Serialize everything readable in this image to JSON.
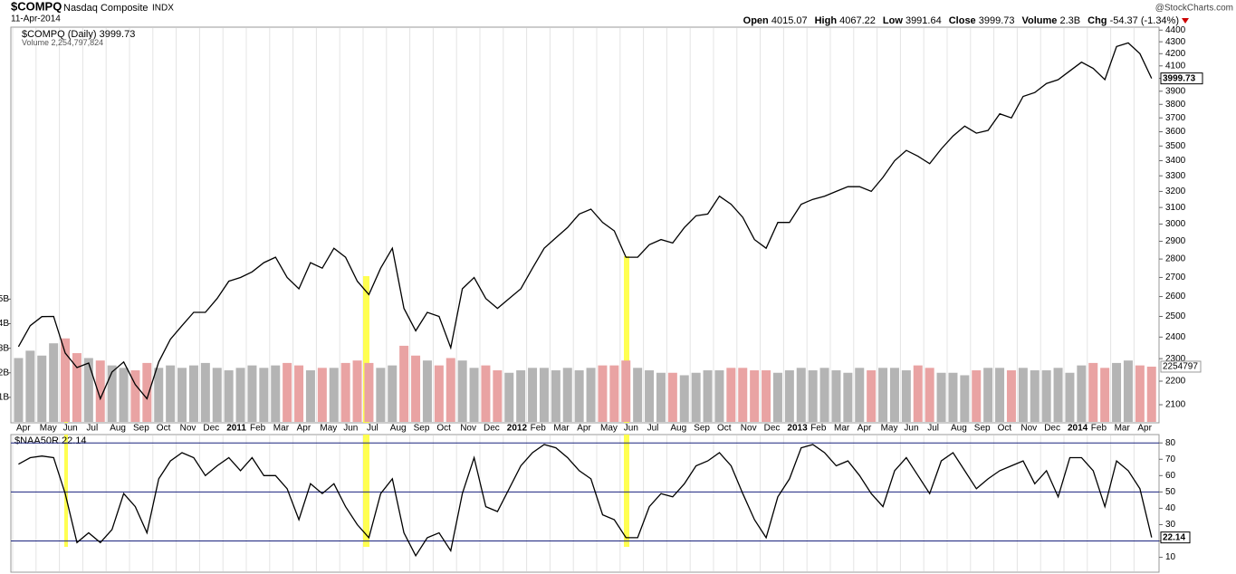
{
  "header": {
    "symbol": "$COMPQ",
    "name": "Nasdaq Composite",
    "exchange": "INDX",
    "date": "11-Apr-2014",
    "source": "@StockCharts.com",
    "quote": [
      {
        "label": "Open",
        "value": "4015.07"
      },
      {
        "label": "High",
        "value": "4067.22"
      },
      {
        "label": "Low",
        "value": "3991.64"
      },
      {
        "label": "Close",
        "value": "3999.73"
      },
      {
        "label": "Volume",
        "value": "2.3B"
      },
      {
        "label": "Chg",
        "value": "-54.37 (-1.34%)"
      }
    ]
  },
  "chart_data": [
    {
      "type": "line",
      "categories": [
        "Apr",
        null,
        "May",
        null,
        "Jun",
        null,
        "Jul",
        null,
        "Aug",
        null,
        "Sep",
        null,
        "Oct",
        null,
        "Nov",
        null,
        "Dec",
        null,
        "2011",
        null,
        "Feb",
        null,
        "Mar",
        null,
        "Apr",
        null,
        "May",
        null,
        "Jun",
        null,
        "Jul",
        null,
        "Aug",
        null,
        "Sep",
        null,
        "Oct",
        null,
        "Nov",
        null,
        "Dec",
        null,
        "2012",
        null,
        "Feb",
        null,
        "Mar",
        null,
        "Apr",
        null,
        "May",
        null,
        "Jun",
        null,
        "Jul",
        null,
        "Aug",
        null,
        "Sep",
        null,
        "Oct",
        null,
        "Nov",
        null,
        "Dec",
        null,
        "2013",
        null,
        "Feb",
        null,
        "Mar",
        null,
        "Apr",
        null,
        "May",
        null,
        "Jun",
        null,
        "Jul",
        null,
        "Aug",
        null,
        "Sep",
        null,
        "Oct",
        null,
        "Nov",
        null,
        "Dec",
        null,
        "2014",
        null,
        "Feb",
        null,
        "Mar",
        null,
        "Apr",
        null
      ],
      "series": [
        {
          "name": "$COMPQ (Daily)",
          "color": "#000000",
          "values": [
            2355,
            2455,
            2499,
            2500,
            2326,
            2260,
            2280,
            2125,
            2240,
            2285,
            2185,
            2125,
            2285,
            2390,
            2455,
            2520,
            2520,
            2590,
            2680,
            2700,
            2730,
            2780,
            2810,
            2700,
            2640,
            2780,
            2750,
            2860,
            2810,
            2680,
            2610,
            2750,
            2860,
            2540,
            2430,
            2520,
            2500,
            2350,
            2640,
            2700,
            2590,
            2540,
            2590,
            2640,
            2750,
            2860,
            2920,
            2980,
            3060,
            3090,
            3010,
            2960,
            2810,
            2810,
            2880,
            2910,
            2890,
            2980,
            3050,
            3060,
            3170,
            3120,
            3040,
            2910,
            2860,
            3010,
            3010,
            3120,
            3150,
            3170,
            3200,
            3230,
            3230,
            3200,
            3290,
            3400,
            3470,
            3430,
            3380,
            3480,
            3570,
            3640,
            3590,
            3610,
            3730,
            3700,
            3860,
            3890,
            3960,
            3990,
            4060,
            4130,
            4080,
            3990,
            4260,
            4290,
            4200,
            3999.73
          ]
        },
        {
          "name": "Volume",
          "type": "bar",
          "axis": "y2",
          "colors": {
            "up": "#b4b4b4",
            "down": "#e9a3a3"
          },
          "total": "2,254,797,824",
          "tag": "2254797",
          "values": [
            2.6,
            2.9,
            2.7,
            3.2,
            3.4,
            2.8,
            2.6,
            2.5,
            2.3,
            2.2,
            2.1,
            2.4,
            2.2,
            2.3,
            2.2,
            2.3,
            2.4,
            2.2,
            2.1,
            2.2,
            2.3,
            2.2,
            2.3,
            2.4,
            2.3,
            2.1,
            2.2,
            2.2,
            2.4,
            2.5,
            2.4,
            2.2,
            2.3,
            3.1,
            2.7,
            2.5,
            2.3,
            2.6,
            2.5,
            2.2,
            2.3,
            2.1,
            2.0,
            2.1,
            2.2,
            2.2,
            2.1,
            2.2,
            2.1,
            2.2,
            2.3,
            2.3,
            2.5,
            2.2,
            2.1,
            2.0,
            2.0,
            1.9,
            2.0,
            2.1,
            2.1,
            2.2,
            2.2,
            2.1,
            2.1,
            2.0,
            2.1,
            2.2,
            2.1,
            2.2,
            2.1,
            2.0,
            2.2,
            2.1,
            2.2,
            2.2,
            2.1,
            2.3,
            2.2,
            2.0,
            2.0,
            1.9,
            2.1,
            2.2,
            2.2,
            2.1,
            2.2,
            2.1,
            2.1,
            2.2,
            2.0,
            2.3,
            2.4,
            2.2,
            2.4,
            2.5,
            2.3,
            2.25
          ]
        }
      ],
      "ylim": [
        2030,
        4410
      ],
      "log_scale": true,
      "yticks": [
        2100,
        2200,
        2300,
        2400,
        2500,
        2600,
        2700,
        2800,
        2900,
        3000,
        3100,
        3200,
        3300,
        3400,
        3500,
        3600,
        3700,
        3800,
        3900,
        4000,
        4100,
        4200,
        4300,
        4400
      ],
      "y2lim": [
        0,
        16
      ],
      "y2ticks": [
        {
          "value": 1,
          "label": "1B"
        },
        {
          "value": 2,
          "label": "2B"
        },
        {
          "value": 3,
          "label": "3B"
        },
        {
          "value": 4,
          "label": "4B"
        },
        {
          "value": 5,
          "label": "5B"
        }
      ],
      "grid": true
    },
    {
      "type": "line",
      "series": [
        {
          "name": "$NAA50R",
          "color": "#000000",
          "values": [
            67,
            71,
            72,
            71,
            49,
            19,
            25,
            19,
            27,
            49,
            41,
            25,
            58,
            69,
            74,
            71,
            60,
            66,
            71,
            63,
            71,
            60,
            60,
            52,
            33,
            55,
            49,
            55,
            41,
            30,
            22,
            49,
            58,
            25,
            11,
            22,
            25,
            14,
            49,
            71,
            41,
            38,
            52,
            66,
            74,
            79,
            77,
            71,
            63,
            58,
            36,
            33,
            22,
            22,
            41,
            49,
            47,
            55,
            66,
            69,
            74,
            66,
            49,
            33,
            22,
            47,
            58,
            77,
            79,
            74,
            66,
            69,
            60,
            49,
            41,
            63,
            71,
            60,
            49,
            69,
            74,
            63,
            52,
            58,
            63,
            66,
            69,
            55,
            63,
            47,
            71,
            71,
            63,
            41,
            69,
            63,
            52,
            22.14
          ]
        }
      ],
      "ylim": [
        2,
        84
      ],
      "yticks": [
        10,
        20,
        30,
        40,
        50,
        60,
        70,
        80
      ],
      "hlines": [
        20,
        50,
        80
      ],
      "hline_color": "#1a237e"
    }
  ]
}
